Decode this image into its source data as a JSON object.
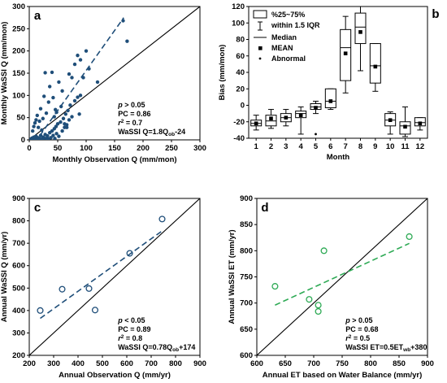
{
  "figure": {
    "background": "#ffffff",
    "accent_blue": "#1f4e79",
    "accent_green": "#2eaa55"
  },
  "chart_data": [
    {
      "panel": "a",
      "type": "scatter",
      "xlabel": "Monthly Observation Q (mm/mon)",
      "ylabel": "Monthly WaSSI Q (mm/mon)",
      "xlim": [
        0,
        300
      ],
      "ylim": [
        0,
        300
      ],
      "xticks": [
        0,
        50,
        100,
        150,
        200,
        250,
        300
      ],
      "yticks": [
        0,
        50,
        100,
        150,
        200,
        250,
        300
      ],
      "color": "#1f4e79",
      "points": [
        [
          3,
          2
        ],
        [
          5,
          4
        ],
        [
          7,
          1
        ],
        [
          8,
          6
        ],
        [
          10,
          3
        ],
        [
          12,
          8
        ],
        [
          14,
          2
        ],
        [
          15,
          5
        ],
        [
          18,
          3
        ],
        [
          20,
          10
        ],
        [
          22,
          1
        ],
        [
          24,
          6
        ],
        [
          26,
          4
        ],
        [
          28,
          12
        ],
        [
          30,
          3
        ],
        [
          32,
          9
        ],
        [
          34,
          2
        ],
        [
          36,
          16
        ],
        [
          38,
          5
        ],
        [
          40,
          20
        ],
        [
          42,
          10
        ],
        [
          44,
          25
        ],
        [
          45,
          3
        ],
        [
          47,
          30
        ],
        [
          48,
          14
        ],
        [
          50,
          36
        ],
        [
          52,
          8
        ],
        [
          55,
          40
        ],
        [
          58,
          20
        ],
        [
          60,
          48
        ],
        [
          62,
          28
        ],
        [
          64,
          58
        ],
        [
          66,
          34
        ],
        [
          68,
          66
        ],
        [
          70,
          45
        ],
        [
          72,
          78
        ],
        [
          75,
          52
        ],
        [
          80,
          88
        ],
        [
          85,
          96
        ],
        [
          88,
          58
        ],
        [
          90,
          100
        ],
        [
          95,
          140
        ],
        [
          100,
          200
        ],
        [
          105,
          160
        ],
        [
          120,
          130
        ],
        [
          165,
          268
        ],
        [
          172,
          222
        ],
        [
          6,
          20
        ],
        [
          10,
          38
        ],
        [
          14,
          55
        ],
        [
          20,
          70
        ],
        [
          24,
          48
        ],
        [
          18,
          42
        ],
        [
          26,
          98
        ],
        [
          28,
          151
        ],
        [
          40,
          152
        ],
        [
          36,
          120
        ],
        [
          46,
          68
        ],
        [
          48,
          62
        ],
        [
          56,
          75
        ],
        [
          58,
          110
        ],
        [
          62,
          36
        ],
        [
          66,
          28
        ],
        [
          70,
          148
        ],
        [
          75,
          140
        ],
        [
          80,
          170
        ],
        [
          85,
          190
        ],
        [
          90,
          180
        ],
        [
          8,
          30
        ],
        [
          12,
          45
        ],
        [
          30,
          60
        ],
        [
          34,
          85
        ],
        [
          42,
          95
        ],
        [
          52,
          130
        ],
        [
          16,
          28
        ],
        [
          22,
          22
        ],
        [
          44,
          52
        ]
      ],
      "diagonal": [
        [
          0,
          0
        ],
        [
          300,
          300
        ]
      ],
      "fit": [
        [
          0,
          -24
        ],
        [
          166,
          274.8
        ]
      ],
      "stats": [
        {
          "pre": "",
          "it": "p",
          "post": " > 0.05"
        },
        {
          "pre": "PC = 0.86",
          "it": "",
          "post": ""
        },
        {
          "pre": "",
          "it": "r",
          "sup": "2",
          "post": " = 0.7"
        },
        {
          "pre": "WaSSI Q=1.8Q",
          "sub": "ob",
          "post": "-24"
        }
      ]
    },
    {
      "panel": "b",
      "type": "box",
      "xlabel": "Month",
      "ylabel": "Bias (mm/mon)",
      "ylim": [
        -40,
        120
      ],
      "yticks": [
        -40,
        -20,
        0,
        20,
        40,
        60,
        80,
        100,
        120
      ],
      "categories": [
        "1",
        "2",
        "3",
        "4",
        "5",
        "6",
        "7",
        "8",
        "9",
        "10",
        "11",
        "12"
      ],
      "boxes": [
        {
          "min": -30,
          "q1": -25,
          "median": -22,
          "q3": -18,
          "max": -12,
          "mean": -22,
          "abnormal": []
        },
        {
          "min": -28,
          "q1": -25,
          "median": -19,
          "q3": -12,
          "max": -5,
          "mean": -16,
          "abnormal": []
        },
        {
          "min": -25,
          "q1": -20,
          "median": -15,
          "q3": -10,
          "max": -5,
          "mean": -15,
          "abnormal": []
        },
        {
          "min": -35,
          "q1": -15,
          "median": -10,
          "q3": -7,
          "max": -2,
          "mean": -12,
          "abnormal": []
        },
        {
          "min": -10,
          "q1": -5,
          "median": -2,
          "q3": 2,
          "max": 5,
          "mean": -3,
          "abnormal": [
            -35
          ]
        },
        {
          "min": -5,
          "q1": -3,
          "median": 5,
          "q3": 20,
          "max": 20,
          "mean": 5,
          "abnormal": []
        },
        {
          "min": 15,
          "q1": 30,
          "median": 70,
          "q3": 92,
          "max": 108,
          "mean": 63,
          "abnormal": []
        },
        {
          "min": 42,
          "q1": 75,
          "median": 95,
          "q3": 112,
          "max": 120,
          "mean": 89,
          "abnormal": []
        },
        {
          "min": 17,
          "q1": 27,
          "median": 48,
          "q3": 75,
          "max": 75,
          "mean": 47,
          "abnormal": []
        },
        {
          "min": -35,
          "q1": -25,
          "median": -18,
          "q3": -10,
          "max": -8,
          "mean": -18,
          "abnormal": []
        },
        {
          "min": -38,
          "q1": -35,
          "median": -25,
          "q3": -20,
          "max": -2,
          "mean": -26,
          "abnormal": []
        },
        {
          "min": -30,
          "q1": -25,
          "median": -21,
          "q3": -15,
          "max": -15,
          "mean": -22,
          "abnormal": []
        }
      ],
      "legend": {
        "position": "top-left",
        "items": [
          "%25~75%",
          "within 1.5 IQR",
          "Median",
          "MEAN",
          "Abnormal"
        ]
      }
    },
    {
      "panel": "c",
      "type": "scatter",
      "xlabel": "Annual Observation Q (mm/yr)",
      "ylabel": "Annual WaSSI Q (mm/yr)",
      "xlim": [
        200,
        900
      ],
      "ylim": [
        200,
        900
      ],
      "xticks": [
        200,
        300,
        400,
        500,
        600,
        700,
        800,
        900
      ],
      "yticks": [
        200,
        300,
        400,
        500,
        600,
        700,
        800,
        900
      ],
      "color": "#1f4e79",
      "points": [
        [
          245,
          400
        ],
        [
          335,
          495
        ],
        [
          445,
          498
        ],
        [
          470,
          402
        ],
        [
          612,
          655
        ],
        [
          745,
          808
        ]
      ],
      "diagonal": [
        [
          200,
          200
        ],
        [
          900,
          900
        ]
      ],
      "fit": [
        [
          245,
          365
        ],
        [
          745,
          755
        ]
      ],
      "stats": [
        {
          "pre": "",
          "it": "p",
          "post": " < 0.05"
        },
        {
          "pre": "PC = 0.89",
          "it": "",
          "post": ""
        },
        {
          "pre": "",
          "it": "r",
          "sup": "2",
          "post": " = 0.8"
        },
        {
          "pre": "WaSSI Q=0.78Q",
          "sub": "ob",
          "post": "+174"
        }
      ]
    },
    {
      "panel": "d",
      "type": "scatter",
      "xlabel": "Annual ET based on Water Balance (mm/yr)",
      "ylabel": "Annual WaSSI ET (mm/yr)",
      "xlim": [
        600,
        900
      ],
      "ylim": [
        600,
        900
      ],
      "xticks": [
        600,
        650,
        700,
        750,
        800,
        850,
        900
      ],
      "yticks": [
        600,
        650,
        700,
        750,
        800,
        850,
        900
      ],
      "color": "#2eaa55",
      "points": [
        [
          632,
          732
        ],
        [
          692,
          707
        ],
        [
          708,
          696
        ],
        [
          708,
          684
        ],
        [
          718,
          800
        ],
        [
          868,
          827
        ]
      ],
      "diagonal": [
        [
          600,
          600
        ],
        [
          900,
          900
        ]
      ],
      "fit": [
        [
          632,
          696
        ],
        [
          868,
          814
        ]
      ],
      "stats": [
        {
          "pre": "",
          "it": "p",
          "post": " > 0.05"
        },
        {
          "pre": "PC = 0.68",
          "it": "",
          "post": ""
        },
        {
          "pre": "",
          "it": "r",
          "sup": "2",
          "post": " = 0.5"
        },
        {
          "pre": "WaSSI ET=0.5ET",
          "sub": "wb",
          "post": "+380"
        }
      ]
    }
  ]
}
